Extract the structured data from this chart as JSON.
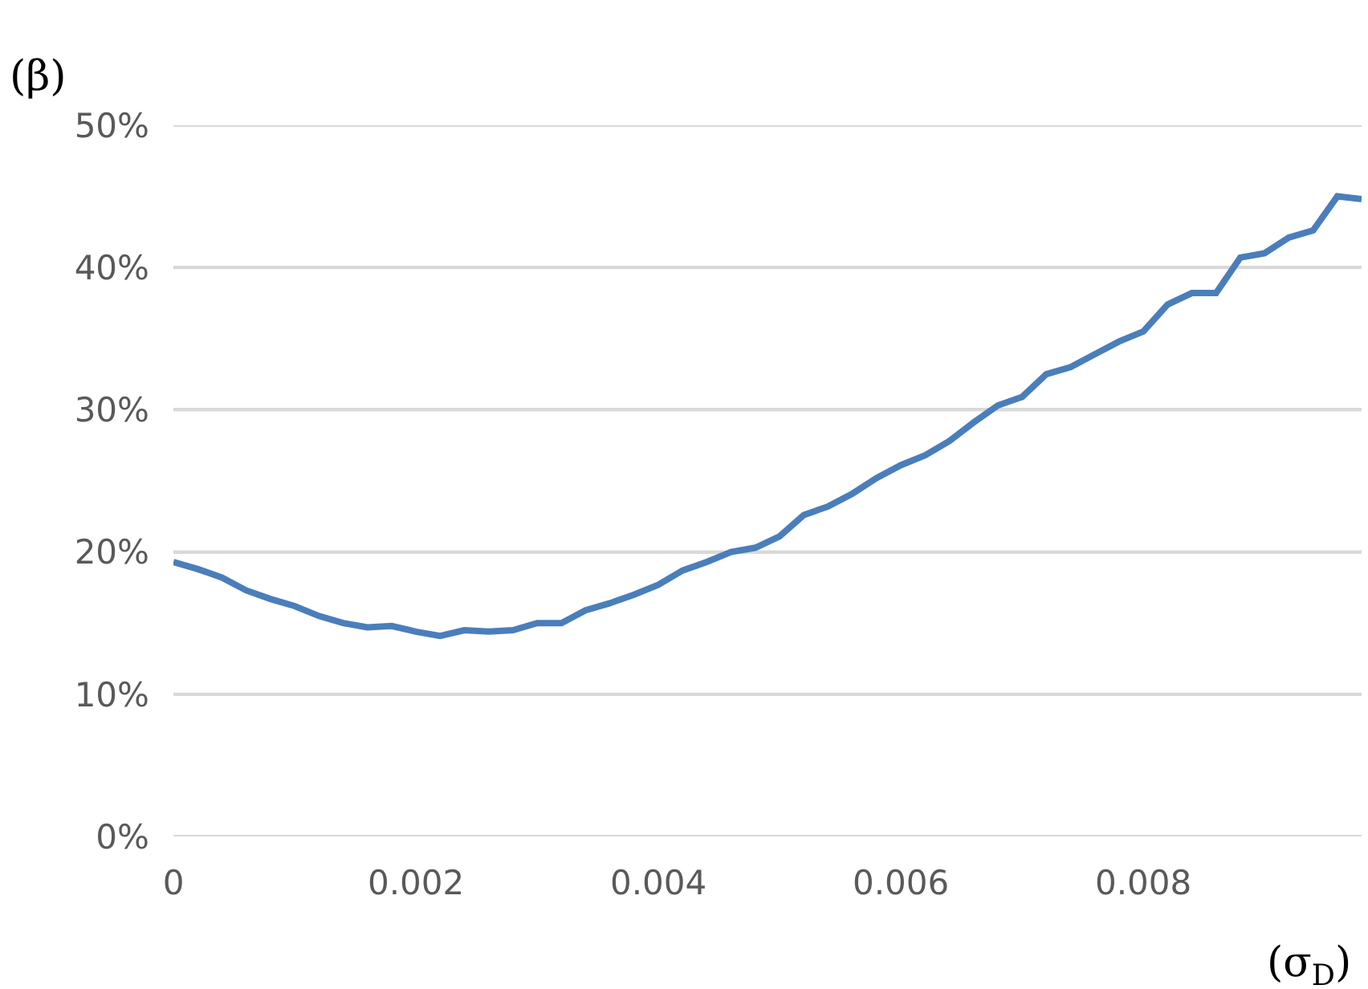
{
  "chart_data": {
    "type": "line",
    "xlabel": "(σ$_{D}$)",
    "ylabel": "(β)",
    "x": [
      0,
      0.0002,
      0.0004,
      0.0006,
      0.0008,
      0.001,
      0.0012,
      0.0014,
      0.0016,
      0.0018,
      0.002,
      0.0022,
      0.0024,
      0.0026,
      0.0028,
      0.003,
      0.0032,
      0.0034,
      0.0036,
      0.0038,
      0.004,
      0.0042,
      0.0044,
      0.0046,
      0.0048,
      0.005,
      0.0052,
      0.0054,
      0.0056,
      0.0058,
      0.006,
      0.0062,
      0.0064,
      0.0066,
      0.0068,
      0.007,
      0.0072,
      0.0074,
      0.0076,
      0.0078,
      0.008,
      0.0082,
      0.0084,
      0.0086,
      0.0088,
      0.009,
      0.0092,
      0.0094,
      0.0096,
      0.0098
    ],
    "series": [
      {
        "color": "#4a7ebb",
        "values": [
          19.3,
          18.8,
          18.2,
          17.3,
          16.7,
          16.2,
          15.5,
          15.0,
          14.7,
          14.8,
          14.4,
          14.1,
          14.5,
          14.4,
          14.5,
          15.0,
          15.0,
          15.9,
          16.4,
          17.0,
          17.7,
          18.7,
          19.3,
          20.0,
          20.3,
          21.1,
          22.6,
          23.2,
          24.1,
          25.2,
          26.1,
          26.8,
          27.8,
          29.1,
          30.3,
          30.9,
          32.5,
          33.0,
          33.9,
          34.8,
          35.5,
          37.4,
          38.2,
          38.2,
          40.7,
          41.0,
          42.1,
          42.6,
          45.0,
          44.8
        ]
      }
    ],
    "xlim": [
      0,
      0.0098
    ],
    "xticks": [
      0,
      0.002,
      0.004,
      0.006,
      0.008
    ],
    "ylim": [
      0,
      50
    ],
    "yticks": [
      {
        "value": 0,
        "label": "0%"
      },
      {
        "value": 10,
        "label": "10%"
      },
      {
        "value": 20,
        "label": "20%"
      },
      {
        "value": 30,
        "label": "30%"
      },
      {
        "value": 40,
        "label": "40%"
      },
      {
        "value": 50,
        "label": "50%"
      }
    ],
    "grid": "y",
    "marker": "none",
    "line_style": "solid"
  }
}
